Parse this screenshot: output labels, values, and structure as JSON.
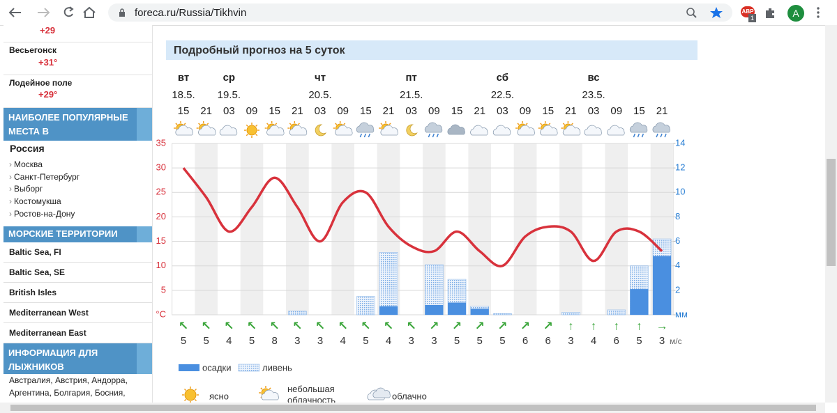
{
  "browser": {
    "url": "foreca.ru/Russia/Tikhvin",
    "profile": "A",
    "adblock": "ABP",
    "adblock_count": "1"
  },
  "sidebar": {
    "top_partial_temp": "+29",
    "cities": [
      {
        "name": "Весьегонск",
        "temp": "+31°"
      },
      {
        "name": "Лодейное поле",
        "temp": "+29°"
      }
    ],
    "popular": {
      "header": "НАИБОЛЕЕ ПОПУЛЯРНЫЕ МЕСТА В",
      "country": "Россия",
      "links": [
        "Москва",
        "Санкт-Петербург",
        "Выборг",
        "Костомукша",
        "Ростов-на-Дону"
      ]
    },
    "marine": {
      "header": "МОРСКИЕ ТЕРРИТОРИИ",
      "links": [
        "Baltic Sea, FI",
        "Baltic Sea, SE",
        "British Isles",
        "Mediterranean West",
        "Mediterranean East"
      ]
    },
    "ski": {
      "header": "ИНФОРМАЦИЯ ДЛЯ ЛЫЖНИКОВ",
      "lines": [
        "Австралия, Австрия, Андорра,",
        "Аргентина, Болгария, Босния,"
      ]
    }
  },
  "chart_data": {
    "type": "line",
    "title": "Подробный прогноз на 5 суток",
    "day_names": [
      "вт",
      null,
      "ср",
      null,
      null,
      null,
      "чт",
      null,
      null,
      null,
      "пт",
      null,
      null,
      null,
      "сб",
      null,
      null,
      null,
      "вс",
      null,
      null,
      null
    ],
    "dates": [
      "18.5.",
      null,
      "19.5.",
      null,
      null,
      null,
      "20.5.",
      null,
      null,
      null,
      "21.5.",
      null,
      null,
      null,
      "22.5.",
      null,
      null,
      null,
      "23.5.",
      null,
      null,
      null
    ],
    "categories": [
      "15",
      "21",
      "03",
      "09",
      "15",
      "21",
      "03",
      "09",
      "15",
      "21",
      "03",
      "09",
      "15",
      "21",
      "03",
      "09",
      "15",
      "21",
      "03",
      "09",
      "15",
      "21"
    ],
    "ylim": [
      0,
      35
    ],
    "yticks": [
      {
        "value": 0,
        "label": "°C"
      },
      5,
      10,
      15,
      20,
      25,
      30,
      35
    ],
    "y2lim": [
      0,
      14
    ],
    "y2ticks": [
      {
        "value": 0,
        "label": "мм"
      },
      2,
      4,
      6,
      8,
      10,
      12,
      14
    ],
    "grid": true,
    "series": [
      {
        "color": "#d8323c",
        "values": [
          30,
          24,
          17,
          22,
          28,
          22,
          15,
          23,
          25,
          18,
          14,
          13,
          17,
          13,
          10,
          16,
          18,
          17,
          11,
          17,
          17,
          13
        ]
      },
      {
        "name": "ливень",
        "type": "bar",
        "axis": "y2",
        "color": "#7eaee6",
        "pattern": "dots",
        "values": [
          null,
          null,
          null,
          null,
          null,
          0.3,
          null,
          null,
          1.5,
          5.1,
          null,
          4.1,
          2.9,
          0.7,
          0.1,
          null,
          null,
          0.2,
          null,
          0.4,
          4.0,
          6.2
        ]
      },
      {
        "name": "осадки",
        "type": "bar",
        "axis": "y2",
        "color": "#4a8fe0",
        "values": [
          null,
          null,
          null,
          null,
          null,
          null,
          null,
          null,
          null,
          0.7,
          null,
          0.8,
          1.0,
          0.5,
          null,
          null,
          null,
          null,
          null,
          null,
          2.1,
          4.8
        ]
      }
    ],
    "wind": {
      "directions": [
        "↖",
        "↖",
        "↖",
        "↖",
        "↖",
        "↖",
        "↖",
        "↖",
        "↖",
        "↖",
        "↖",
        "↗",
        "↗",
        "↗",
        "↗",
        "↗",
        "↗",
        "↑",
        "↑",
        "↑",
        "↑",
        "→"
      ],
      "speeds": [
        5,
        5,
        4,
        5,
        8,
        3,
        3,
        4,
        5,
        4,
        3,
        3,
        5,
        5,
        5,
        6,
        6,
        3,
        4,
        6,
        5,
        3
      ],
      "unit": "м/с",
      "color": "#3aa53a"
    }
  },
  "symbols_legend": [
    "ясно",
    "небольшая облачность",
    "облачно"
  ]
}
